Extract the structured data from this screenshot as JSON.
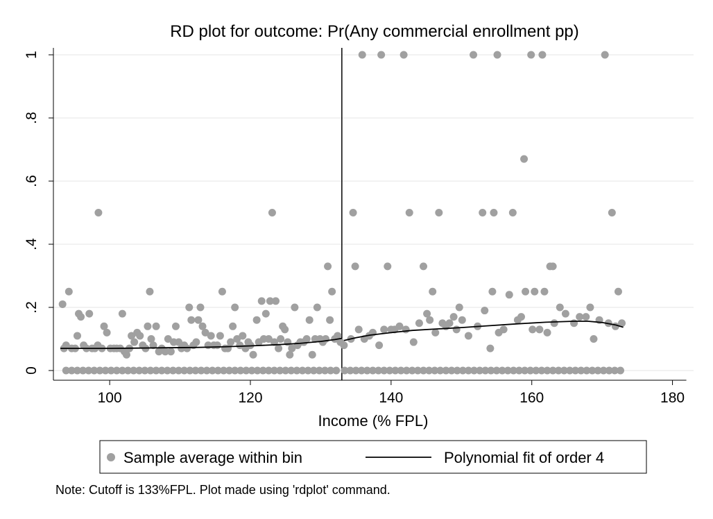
{
  "chart_data": {
    "type": "scatter",
    "title": "RD plot for outcome: Pr(Any commercial enrollment pp)",
    "xlabel": "Income (% FPL)",
    "ylabel": "",
    "xlim": [
      92,
      183
    ],
    "ylim": [
      0,
      1
    ],
    "xticks": [
      "100",
      "120",
      "140",
      "160",
      "180"
    ],
    "yticks": [
      "0",
      ".2",
      ".4",
      ".6",
      ".8",
      "1"
    ],
    "grid": "horizontal",
    "cutoff": 133,
    "legend_position": "bottom",
    "note": "Note: Cutoff is 133%FPL. Plot made using 'rdplot' command.",
    "point_color": "#a0a0a0",
    "line_color": "#000000",
    "series": [
      {
        "name": "Sample average within bin",
        "kind": "points",
        "points": [
          [
            93.3,
            0.21
          ],
          [
            93.5,
            0.07
          ],
          [
            93.8,
            0.08
          ],
          [
            94.2,
            0.25
          ],
          [
            94.6,
            0.07
          ],
          [
            95.1,
            0.07
          ],
          [
            95.4,
            0.11
          ],
          [
            95.6,
            0.18
          ],
          [
            95.9,
            0.17
          ],
          [
            96.3,
            0.08
          ],
          [
            96.7,
            0.07
          ],
          [
            97.1,
            0.18
          ],
          [
            97.5,
            0.07
          ],
          [
            97.9,
            0.07
          ],
          [
            98.3,
            0.08
          ],
          [
            98.4,
            0.5
          ],
          [
            98.9,
            0.07
          ],
          [
            99.2,
            0.14
          ],
          [
            99.6,
            0.12
          ],
          [
            100.1,
            0.07
          ],
          [
            100.6,
            0.07
          ],
          [
            101.0,
            0.07
          ],
          [
            101.5,
            0.07
          ],
          [
            101.8,
            0.18
          ],
          [
            102.1,
            0.06
          ],
          [
            102.4,
            0.05
          ],
          [
            102.8,
            0.07
          ],
          [
            103.1,
            0.11
          ],
          [
            103.5,
            0.09
          ],
          [
            103.9,
            0.12
          ],
          [
            104.3,
            0.11
          ],
          [
            104.7,
            0.08
          ],
          [
            105.1,
            0.07
          ],
          [
            105.4,
            0.14
          ],
          [
            105.7,
            0.25
          ],
          [
            105.9,
            0.1
          ],
          [
            106.2,
            0.08
          ],
          [
            106.6,
            0.14
          ],
          [
            107.0,
            0.06
          ],
          [
            107.4,
            0.07
          ],
          [
            107.9,
            0.06
          ],
          [
            108.3,
            0.1
          ],
          [
            108.7,
            0.06
          ],
          [
            109.1,
            0.09
          ],
          [
            109.4,
            0.14
          ],
          [
            109.8,
            0.09
          ],
          [
            110.2,
            0.07
          ],
          [
            110.6,
            0.08
          ],
          [
            111.0,
            0.07
          ],
          [
            111.3,
            0.2
          ],
          [
            111.6,
            0.16
          ],
          [
            111.9,
            0.08
          ],
          [
            112.3,
            0.09
          ],
          [
            112.6,
            0.16
          ],
          [
            112.9,
            0.2
          ],
          [
            113.2,
            0.14
          ],
          [
            113.6,
            0.12
          ],
          [
            114.0,
            0.08
          ],
          [
            114.4,
            0.11
          ],
          [
            114.8,
            0.08
          ],
          [
            115.3,
            0.08
          ],
          [
            115.7,
            0.11
          ],
          [
            116.0,
            0.25
          ],
          [
            116.4,
            0.07
          ],
          [
            116.8,
            0.07
          ],
          [
            117.2,
            0.09
          ],
          [
            117.5,
            0.14
          ],
          [
            117.8,
            0.2
          ],
          [
            118.1,
            0.1
          ],
          [
            118.5,
            0.08
          ],
          [
            118.9,
            0.11
          ],
          [
            119.3,
            0.07
          ],
          [
            119.7,
            0.09
          ],
          [
            120.0,
            0.08
          ],
          [
            120.4,
            0.05
          ],
          [
            120.9,
            0.16
          ],
          [
            121.2,
            0.09
          ],
          [
            121.6,
            0.22
          ],
          [
            121.9,
            0.1
          ],
          [
            122.2,
            0.18
          ],
          [
            122.6,
            0.1
          ],
          [
            122.8,
            0.22
          ],
          [
            123.1,
            0.5
          ],
          [
            123.4,
            0.09
          ],
          [
            123.6,
            0.22
          ],
          [
            124.0,
            0.07
          ],
          [
            124.3,
            0.1
          ],
          [
            124.6,
            0.14
          ],
          [
            124.9,
            0.13
          ],
          [
            125.3,
            0.09
          ],
          [
            125.6,
            0.05
          ],
          [
            125.9,
            0.07
          ],
          [
            126.3,
            0.2
          ],
          [
            126.7,
            0.08
          ],
          [
            127.1,
            0.09
          ],
          [
            127.6,
            0.09
          ],
          [
            128.0,
            0.1
          ],
          [
            128.4,
            0.16
          ],
          [
            128.8,
            0.05
          ],
          [
            129.2,
            0.1
          ],
          [
            129.5,
            0.2
          ],
          [
            129.9,
            0.1
          ],
          [
            130.3,
            0.09
          ],
          [
            130.7,
            0.1
          ],
          [
            131.0,
            0.33
          ],
          [
            131.3,
            0.16
          ],
          [
            131.6,
            0.25
          ],
          [
            132.0,
            0.1
          ],
          [
            132.4,
            0.11
          ],
          [
            132.8,
            0.09
          ],
          [
            133.3,
            0.08
          ],
          [
            134.3,
            0.1
          ],
          [
            134.6,
            0.5
          ],
          [
            134.9,
            0.33
          ],
          [
            135.4,
            0.13
          ],
          [
            135.9,
            1.0
          ],
          [
            136.2,
            0.1
          ],
          [
            136.9,
            0.11
          ],
          [
            137.4,
            0.12
          ],
          [
            138.3,
            0.08
          ],
          [
            138.6,
            1.0
          ],
          [
            139.0,
            0.13
          ],
          [
            139.5,
            0.33
          ],
          [
            140.0,
            0.13
          ],
          [
            140.5,
            0.13
          ],
          [
            141.2,
            0.14
          ],
          [
            141.8,
            1.0
          ],
          [
            142.1,
            0.13
          ],
          [
            142.6,
            0.5
          ],
          [
            143.2,
            0.09
          ],
          [
            144.0,
            0.15
          ],
          [
            144.6,
            0.33
          ],
          [
            145.1,
            0.18
          ],
          [
            145.5,
            0.16
          ],
          [
            145.9,
            0.25
          ],
          [
            146.3,
            0.12
          ],
          [
            146.8,
            0.5
          ],
          [
            147.3,
            0.15
          ],
          [
            147.8,
            0.14
          ],
          [
            148.3,
            0.15
          ],
          [
            148.9,
            0.17
          ],
          [
            149.3,
            0.13
          ],
          [
            149.7,
            0.2
          ],
          [
            150.1,
            0.16
          ],
          [
            151.0,
            0.11
          ],
          [
            151.7,
            1.0
          ],
          [
            152.3,
            0.14
          ],
          [
            153.0,
            0.5
          ],
          [
            153.3,
            0.19
          ],
          [
            154.1,
            0.07
          ],
          [
            154.4,
            0.25
          ],
          [
            154.6,
            0.5
          ],
          [
            155.1,
            1.0
          ],
          [
            155.3,
            0.12
          ],
          [
            156.0,
            0.13
          ],
          [
            156.8,
            0.24
          ],
          [
            157.3,
            0.5
          ],
          [
            158.0,
            0.16
          ],
          [
            158.5,
            0.17
          ],
          [
            158.9,
            0.67
          ],
          [
            159.1,
            0.25
          ],
          [
            159.9,
            1.0
          ],
          [
            160.1,
            0.13
          ],
          [
            160.4,
            0.25
          ],
          [
            161.1,
            0.13
          ],
          [
            161.5,
            1.0
          ],
          [
            161.8,
            0.25
          ],
          [
            162.2,
            0.12
          ],
          [
            162.6,
            0.33
          ],
          [
            163.0,
            0.33
          ],
          [
            163.2,
            0.15
          ],
          [
            164.0,
            0.2
          ],
          [
            164.8,
            0.18
          ],
          [
            166.0,
            0.15
          ],
          [
            166.8,
            0.17
          ],
          [
            167.7,
            0.17
          ],
          [
            168.3,
            0.2
          ],
          [
            168.8,
            0.1
          ],
          [
            169.6,
            0.16
          ],
          [
            170.4,
            1.0
          ],
          [
            170.9,
            0.15
          ],
          [
            171.4,
            0.5
          ],
          [
            171.9,
            0.14
          ],
          [
            172.3,
            0.25
          ],
          [
            172.8,
            0.15
          ],
          [
            93.8,
            0
          ],
          [
            94.6,
            0
          ],
          [
            95.4,
            0
          ],
          [
            96.2,
            0
          ],
          [
            97.0,
            0
          ],
          [
            97.8,
            0
          ],
          [
            98.6,
            0
          ],
          [
            99.4,
            0
          ],
          [
            100.2,
            0
          ],
          [
            101.0,
            0
          ],
          [
            101.8,
            0
          ],
          [
            102.6,
            0
          ],
          [
            103.4,
            0
          ],
          [
            104.2,
            0
          ],
          [
            105.0,
            0
          ],
          [
            105.8,
            0
          ],
          [
            106.6,
            0
          ],
          [
            107.4,
            0
          ],
          [
            108.2,
            0
          ],
          [
            109.0,
            0
          ],
          [
            109.8,
            0
          ],
          [
            110.6,
            0
          ],
          [
            111.4,
            0
          ],
          [
            112.2,
            0
          ],
          [
            113.0,
            0
          ],
          [
            113.8,
            0
          ],
          [
            114.6,
            0
          ],
          [
            115.4,
            0
          ],
          [
            116.2,
            0
          ],
          [
            117.0,
            0
          ],
          [
            117.8,
            0
          ],
          [
            118.6,
            0
          ],
          [
            119.4,
            0
          ],
          [
            120.2,
            0
          ],
          [
            121.0,
            0
          ],
          [
            121.8,
            0
          ],
          [
            122.6,
            0
          ],
          [
            123.4,
            0
          ],
          [
            124.2,
            0
          ],
          [
            125.0,
            0
          ],
          [
            125.8,
            0
          ],
          [
            126.6,
            0
          ],
          [
            127.4,
            0
          ],
          [
            128.2,
            0
          ],
          [
            129.0,
            0
          ],
          [
            129.8,
            0
          ],
          [
            130.6,
            0
          ],
          [
            131.4,
            0
          ],
          [
            132.2,
            0
          ],
          [
            133.4,
            0
          ],
          [
            134.2,
            0
          ],
          [
            135.0,
            0
          ],
          [
            135.8,
            0
          ],
          [
            136.6,
            0
          ],
          [
            137.4,
            0
          ],
          [
            138.2,
            0
          ],
          [
            139.0,
            0
          ],
          [
            139.8,
            0
          ],
          [
            140.6,
            0
          ],
          [
            141.4,
            0
          ],
          [
            142.2,
            0
          ],
          [
            143.0,
            0
          ],
          [
            143.8,
            0
          ],
          [
            144.6,
            0
          ],
          [
            145.4,
            0
          ],
          [
            146.2,
            0
          ],
          [
            147.0,
            0
          ],
          [
            147.8,
            0
          ],
          [
            148.6,
            0
          ],
          [
            149.4,
            0
          ],
          [
            150.2,
            0
          ],
          [
            151.0,
            0
          ],
          [
            151.8,
            0
          ],
          [
            152.6,
            0
          ],
          [
            153.4,
            0
          ],
          [
            154.2,
            0
          ],
          [
            155.0,
            0
          ],
          [
            155.8,
            0
          ],
          [
            156.6,
            0
          ],
          [
            157.4,
            0
          ],
          [
            158.2,
            0
          ],
          [
            159.0,
            0
          ],
          [
            159.8,
            0
          ],
          [
            160.6,
            0
          ],
          [
            161.4,
            0
          ],
          [
            162.2,
            0
          ],
          [
            163.0,
            0
          ],
          [
            163.8,
            0
          ],
          [
            164.6,
            0
          ],
          [
            165.4,
            0
          ],
          [
            166.2,
            0
          ],
          [
            167.0,
            0
          ],
          [
            167.8,
            0
          ],
          [
            168.6,
            0
          ],
          [
            169.4,
            0
          ],
          [
            170.2,
            0
          ],
          [
            171.0,
            0
          ],
          [
            171.8,
            0
          ],
          [
            172.6,
            0
          ]
        ]
      },
      {
        "name": "Polynomial fit of order 4",
        "kind": "line",
        "points": [
          [
            93,
            0.07
          ],
          [
            96,
            0.07
          ],
          [
            100,
            0.07
          ],
          [
            104,
            0.071
          ],
          [
            108,
            0.072
          ],
          [
            112,
            0.073
          ],
          [
            116,
            0.075
          ],
          [
            120,
            0.078
          ],
          [
            124,
            0.082
          ],
          [
            127,
            0.086
          ],
          [
            130,
            0.092
          ],
          [
            132,
            0.098
          ],
          [
            133,
            0.102
          ],
          [
            133.3,
            0.095
          ],
          [
            135,
            0.104
          ],
          [
            137,
            0.112
          ],
          [
            140,
            0.12
          ],
          [
            143,
            0.127
          ],
          [
            146,
            0.131
          ],
          [
            150,
            0.136
          ],
          [
            154,
            0.142
          ],
          [
            158,
            0.148
          ],
          [
            162,
            0.153
          ],
          [
            166,
            0.156
          ],
          [
            168,
            0.156
          ],
          [
            170,
            0.152
          ],
          [
            172,
            0.144
          ],
          [
            173,
            0.137
          ]
        ]
      }
    ]
  }
}
